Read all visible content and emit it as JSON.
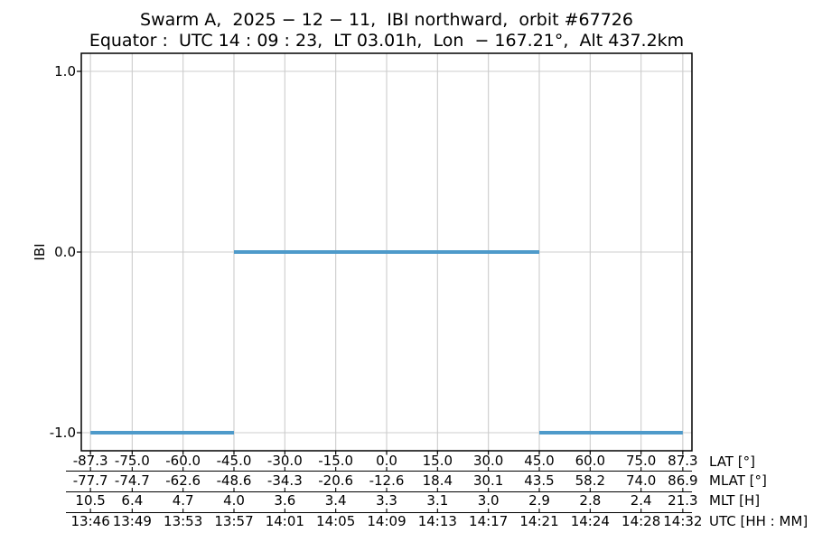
{
  "figure": {
    "title_line1": "Swarm A,  2025 − 12 − 11,  IBI northward,  orbit #67726",
    "title_line2": "Equator :  UTC 14 : 09 : 23,  LT 03.01h,  Lon  − 167.21°,  Alt 437.2km"
  },
  "y_axis": {
    "label": "IBI",
    "tick_labels": [
      "1.0",
      "0.0",
      "-1.0"
    ],
    "tick_values": [
      1.0,
      0.0,
      -1.0
    ],
    "limits": [
      -1.1,
      1.1
    ]
  },
  "x_axis": {
    "tick_lats": [
      -87.3,
      -75,
      -60,
      -45,
      -30,
      -15,
      0,
      15,
      30,
      45,
      60,
      75,
      87.3
    ],
    "rows": [
      {
        "label": "LAT [°]",
        "values": [
          "-87.3",
          "-75.0",
          "-60.0",
          "-45.0",
          "-30.0",
          "-15.0",
          "0.0",
          "15.0",
          "30.0",
          "45.0",
          "60.0",
          "75.0",
          "87.3"
        ]
      },
      {
        "label": "MLAT [°]",
        "values": [
          "-77.7",
          "-74.7",
          "-62.6",
          "-48.6",
          "-34.3",
          "-20.6",
          "-12.6",
          "18.4",
          "30.1",
          "43.5",
          "58.2",
          "74.0",
          "86.9"
        ]
      },
      {
        "label": "MLT [H]",
        "values": [
          "10.5",
          "6.4",
          "4.7",
          "4.0",
          "3.6",
          "3.4",
          "3.3",
          "3.1",
          "3.0",
          "2.9",
          "2.8",
          "2.4",
          "21.3"
        ]
      },
      {
        "label": "UTC [HH : MM]",
        "values": [
          "13:46",
          "13:49",
          "13:53",
          "13:57",
          "14:01",
          "14:05",
          "14:09",
          "14:13",
          "14:17",
          "14:21",
          "14:24",
          "14:28",
          "14:32"
        ]
      }
    ]
  },
  "colors": {
    "line": "#4e9aca",
    "grid": "#cccccc",
    "spine": "#000000",
    "text": "#000000",
    "background": "#ffffff"
  },
  "chart_data": {
    "type": "line",
    "title": "Swarm A, 2025−12−11, IBI northward, orbit #67726",
    "subtitle": "Equator: UTC 14:09:23, LT 03.01h, Lon −167.21°, Alt 437.2km",
    "ylabel": "IBI",
    "ylim": [
      -1.1,
      1.1
    ],
    "yticks": [
      1.0,
      0.0,
      -1.0
    ],
    "xlim_lat": [
      -90,
      90
    ],
    "grid": true,
    "legend": "none",
    "series": [
      {
        "name": "IBI",
        "color": "#4e9aca",
        "segments": [
          {
            "lat": [
              -87.3,
              -45.0
            ],
            "utc": [
              "13:46",
              "13:57"
            ],
            "value": -1
          },
          {
            "lat": [
              -45.0,
              45.0
            ],
            "utc": [
              "13:57",
              "14:21"
            ],
            "value": 0
          },
          {
            "lat": [
              45.0,
              87.3
            ],
            "utc": [
              "14:21",
              "14:32"
            ],
            "value": -1
          }
        ]
      }
    ]
  }
}
